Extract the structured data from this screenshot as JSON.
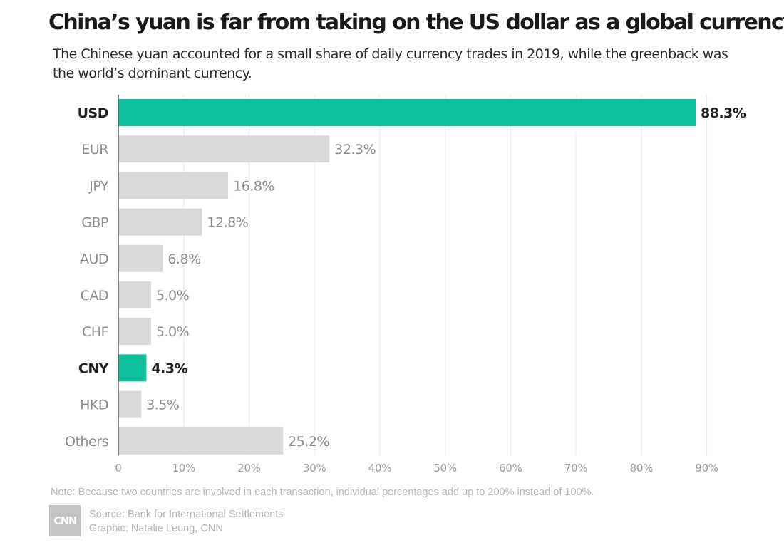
{
  "header": {
    "title": "China’s yuan is far from taking on the US dollar as a global currency",
    "subtitle": "The Chinese yuan accounted for a small share of daily currency trades in 2019, while the greenback was the world’s dominant currency."
  },
  "chart_data": {
    "type": "bar",
    "orientation": "horizontal",
    "categories": [
      "USD",
      "EUR",
      "JPY",
      "GBP",
      "AUD",
      "CAD",
      "CHF",
      "CNY",
      "HKD",
      "Others"
    ],
    "values": [
      88.3,
      32.3,
      16.8,
      12.8,
      6.8,
      5.0,
      5.0,
      4.3,
      3.5,
      25.2
    ],
    "value_labels": [
      "88.3%",
      "32.3%",
      "16.8%",
      "12.8%",
      "6.8%",
      "5.0%",
      "5.0%",
      "4.3%",
      "3.5%",
      "25.2%"
    ],
    "highlighted": [
      "USD",
      "CNY"
    ],
    "xlim": [
      0,
      90
    ],
    "xticks": [
      0,
      10,
      20,
      30,
      40,
      50,
      60,
      70,
      80,
      90
    ],
    "xtick_labels": [
      "0",
      "10%",
      "20%",
      "30%",
      "40%",
      "50%",
      "60%",
      "70%",
      "80%",
      "90%"
    ],
    "grid": "vertical",
    "colors": {
      "highlight": "#0dbf9b",
      "default": "#d9d9d9",
      "grid": "#ececec",
      "axis": "#555555"
    }
  },
  "footer": {
    "note": "Note: Because two countries are involved in each transaction, individual percentages add up to 200% instead of 100%.",
    "source": "Source: Bank for International Settlements",
    "graphic": "Graphic: Natalie Leung, CNN",
    "logo_text": "CNN",
    "logo_icon": "cnn-logo-icon"
  }
}
